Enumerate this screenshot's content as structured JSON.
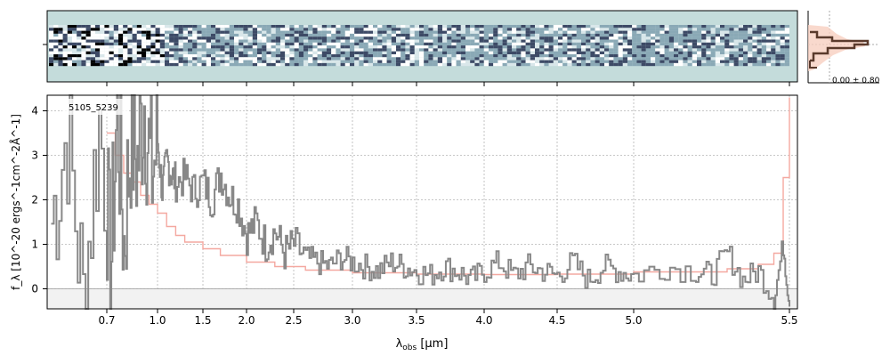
{
  "chart_data": {
    "type": "line",
    "object_label": "5105_5239",
    "xlabel_main": "λ",
    "xlabel_sub": "obs",
    "xlabel_unit": " [μm]",
    "ylabel": "f_λ [10^-20 ergs^-1cm^-2Å^-1]",
    "xlim": [
      0.55,
      5.52
    ],
    "ylim": [
      -0.45,
      4.35
    ],
    "grid": true,
    "x_ticks": [
      0.7,
      1.0,
      1.5,
      2.0,
      2.5,
      3.0,
      3.5,
      4.0,
      4.5,
      5.0,
      5.5
    ],
    "x_tick_labels": [
      "0.7",
      "1.0",
      "1.5",
      "2.0",
      "2.5",
      "3.0",
      "3.5",
      "4.0",
      "4.5",
      "5.0",
      "5.5"
    ],
    "y_ticks": [
      0,
      1,
      2,
      3,
      4
    ],
    "y_tick_labels": [
      "0",
      "1",
      "2",
      "3",
      "4"
    ],
    "histogram_label": "0.00 ± 0.80",
    "series": [
      {
        "role": "flux",
        "color": "#888888",
        "x": [
          0.56,
          0.6,
          0.64,
          0.68,
          0.72,
          0.76,
          0.8,
          0.84,
          0.88,
          0.92,
          0.96,
          1.0,
          1.05,
          1.1,
          1.15,
          1.2,
          1.3,
          1.4,
          1.5,
          1.6,
          1.7,
          1.8,
          1.9,
          2.0,
          2.1,
          2.2,
          2.3,
          2.4,
          2.5,
          2.6,
          2.7,
          2.8,
          2.9,
          3.0,
          3.1,
          3.2,
          3.3,
          3.4,
          3.5,
          3.6,
          3.7,
          3.8,
          3.9,
          4.0,
          4.1,
          4.2,
          4.3,
          4.4,
          4.5,
          4.6,
          4.7,
          4.8,
          4.9,
          5.0,
          5.1,
          5.2,
          5.25,
          5.3,
          5.35,
          5.4,
          5.45,
          5.48,
          5.5
        ],
        "y": [
          1.5,
          3.6,
          -0.3,
          3.8,
          0.2,
          4.0,
          1.0,
          3.5,
          2.8,
          4.3,
          2.5,
          3.3,
          2.2,
          2.9,
          2.6,
          2.4,
          2.5,
          2.2,
          2.4,
          2.0,
          2.6,
          2.1,
          1.9,
          1.2,
          1.5,
          1.0,
          1.3,
          0.8,
          1.0,
          0.7,
          0.6,
          0.5,
          0.7,
          0.6,
          0.5,
          0.4,
          0.6,
          0.5,
          0.4,
          0.3,
          0.5,
          0.4,
          0.2,
          0.4,
          0.6,
          0.3,
          0.5,
          0.4,
          0.3,
          0.6,
          0.2,
          0.5,
          0.4,
          0.3,
          0.5,
          0.4,
          0.3,
          0.8,
          0.2,
          0.4,
          -0.2,
          1.0,
          -0.4
        ]
      },
      {
        "role": "error",
        "color": "#f4a8a0",
        "x": [
          0.7,
          0.75,
          0.8,
          0.85,
          0.9,
          0.95,
          1.0,
          1.1,
          1.2,
          1.3,
          1.5,
          1.7,
          2.0,
          2.3,
          2.6,
          3.0,
          3.5,
          4.0,
          4.5,
          5.0,
          5.3,
          5.4,
          5.45,
          5.48,
          5.5
        ],
        "y": [
          3.5,
          3.0,
          2.6,
          2.4,
          2.1,
          1.9,
          1.7,
          1.4,
          1.2,
          1.05,
          0.9,
          0.75,
          0.6,
          0.5,
          0.42,
          0.36,
          0.33,
          0.32,
          0.33,
          0.38,
          0.45,
          0.55,
          0.8,
          2.5,
          4.3
        ]
      }
    ]
  }
}
